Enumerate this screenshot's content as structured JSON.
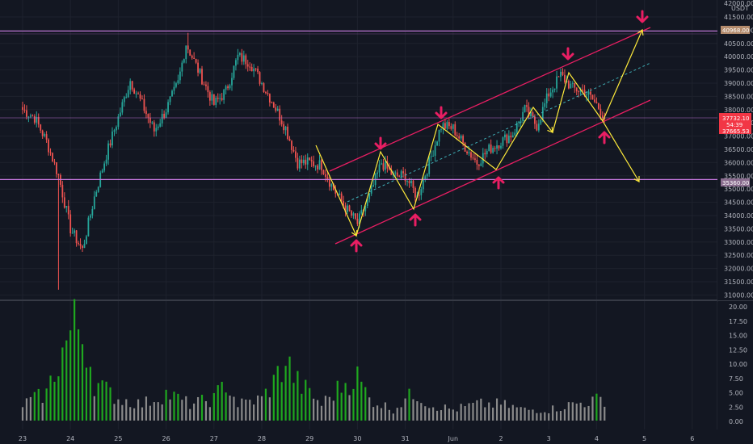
{
  "currency_label": "USDT",
  "colors": {
    "background": "#131722",
    "grid": "#1e222d",
    "up": "#26a69a",
    "down": "#ef5350",
    "level_line": "#c678dd",
    "channel": "#e91e63",
    "path": "#ffeb3b",
    "midline": "#3fb0b8",
    "vol_green": "#1fa81f",
    "vol_gray": "#8a8a8a"
  },
  "price_ticks": [
    "41500.00",
    "41000.00",
    "40500.00",
    "40000.00",
    "39500.00",
    "39000.00",
    "38500.00",
    "38000.00",
    "37500.00",
    "37000.00",
    "36500.00",
    "36000.00",
    "35500.00",
    "35000.00",
    "34500.00",
    "34000.00",
    "33500.00",
    "33000.00",
    "32500.00",
    "32000.00",
    "31500.00",
    "31000.00"
  ],
  "volume_ticks": [
    "20.00",
    "17.50",
    "15.00",
    "12.50",
    "10.00",
    "7.50",
    "5.00",
    "2.50",
    "0.00"
  ],
  "date_labels": [
    "23",
    "24",
    "25",
    "26",
    "27",
    "28",
    "29",
    "30",
    "31",
    "Jun",
    "2",
    "3",
    "4",
    "5",
    "6"
  ],
  "price_tags": {
    "upper_level": "40968.00",
    "current_price": "37732.10",
    "countdown": "54:39",
    "current_low": "37665.53",
    "lower_level": "35360.00"
  },
  "chart_data": [
    {
      "type": "candlestick",
      "title": "",
      "xlabel": "",
      "ylabel": "",
      "x_range": [
        "May 23",
        "Jun 6"
      ],
      "ylim": [
        30800,
        42000
      ],
      "horizontal_levels": [
        40968,
        37732.1,
        35360
      ],
      "anchor_closes": [
        [
          "23 00:00",
          38000
        ],
        [
          "23 06:00",
          37700
        ],
        [
          "23 12:00",
          36800
        ],
        [
          "23 18:00",
          35500
        ],
        [
          "24 00:00",
          33500
        ],
        [
          "24 06:00",
          32700
        ],
        [
          "24 12:00",
          34700
        ],
        [
          "24 18:00",
          36300
        ],
        [
          "25 00:00",
          37700
        ],
        [
          "25 06:00",
          39100
        ],
        [
          "25 12:00",
          38200
        ],
        [
          "25 18:00",
          37200
        ],
        [
          "26 00:00",
          38000
        ],
        [
          "26 06:00",
          39000
        ],
        [
          "26 10:00",
          40500
        ],
        [
          "26 16:00",
          39500
        ],
        [
          "27 00:00",
          38200
        ],
        [
          "27 06:00",
          38700
        ],
        [
          "27 12:00",
          40000
        ],
        [
          "27 18:00",
          39800
        ],
        [
          "28 00:00",
          39000
        ],
        [
          "28 06:00",
          38200
        ],
        [
          "28 12:00",
          37300
        ],
        [
          "28 18:00",
          36000
        ],
        [
          "29 00:00",
          36000
        ],
        [
          "29 06:00",
          35900
        ],
        [
          "29 12:00",
          35000
        ],
        [
          "29 18:00",
          34300
        ],
        [
          "30 00:00",
          33700
        ],
        [
          "30 06:00",
          34700
        ],
        [
          "30 12:00",
          36000
        ],
        [
          "30 18:00",
          35500
        ],
        [
          "31 00:00",
          35500
        ],
        [
          "31 06:00",
          34700
        ],
        [
          "31 12:00",
          36000
        ],
        [
          "31 18:00",
          37400
        ],
        [
          "Jun 1 00:00",
          37300
        ],
        [
          "Jun 1 06:00",
          36600
        ],
        [
          "Jun 1 12:00",
          36000
        ],
        [
          "Jun 1 18:00",
          36500
        ],
        [
          "Jun 2 00:00",
          36800
        ],
        [
          "Jun 2 06:00",
          37100
        ],
        [
          "Jun 2 12:00",
          38000
        ],
        [
          "Jun 2 18:00",
          37400
        ],
        [
          "Jun 3 00:00",
          38600
        ],
        [
          "Jun 3 06:00",
          39300
        ],
        [
          "Jun 3 12:00",
          38800
        ],
        [
          "Jun 3 18:00",
          38700
        ],
        [
          "Jun 4 00:00",
          38200
        ],
        [
          "Jun 4 04:00",
          37732
        ]
      ],
      "range_low": 31200,
      "range_high": 40900
    },
    {
      "type": "bar",
      "title": "",
      "xlabel": "",
      "ylabel": "",
      "ylim": [
        0,
        20
      ],
      "anchor_volumes": [
        [
          "23 00:00",
          3
        ],
        [
          "23 12:00",
          5
        ],
        [
          "23 18:00",
          11
        ],
        [
          "24 00:00",
          16
        ],
        [
          "24 03:00",
          18
        ],
        [
          "24 08:00",
          14
        ],
        [
          "24 12:00",
          7
        ],
        [
          "25 00:00",
          4
        ],
        [
          "25 12:00",
          3
        ],
        [
          "26 00:00",
          5
        ],
        [
          "26 12:00",
          3
        ],
        [
          "27 00:00",
          4
        ],
        [
          "27 06:00",
          7
        ],
        [
          "27 12:00",
          3
        ],
        [
          "28 00:00",
          4
        ],
        [
          "28 06:00",
          7
        ],
        [
          "28 12:00",
          11
        ],
        [
          "28 18:00",
          7
        ],
        [
          "29 00:00",
          5
        ],
        [
          "29 06:00",
          3
        ],
        [
          "29 12:00",
          5
        ],
        [
          "29 18:00",
          7
        ],
        [
          "30 00:00",
          8
        ],
        [
          "30 06:00",
          4
        ],
        [
          "30 18:00",
          2
        ],
        [
          "31 00:00",
          4
        ],
        [
          "31 06:00",
          5
        ],
        [
          "31 12:00",
          3
        ],
        [
          "Jun 1 00:00",
          2
        ],
        [
          "Jun 1 12:00",
          3
        ],
        [
          "Jun 2 00:00",
          3
        ],
        [
          "Jun 2 12:00",
          2
        ],
        [
          "Jun 3 00:00",
          2
        ],
        [
          "Jun 3 12:00",
          3
        ],
        [
          "Jun 4 04:00",
          4
        ]
      ]
    }
  ]
}
